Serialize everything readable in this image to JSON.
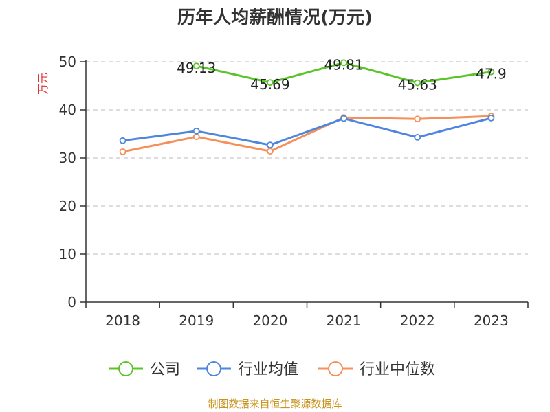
{
  "chart_data": {
    "type": "line",
    "title": "历年人均薪酬情况(万元)",
    "ylabel": "万元",
    "xlabel": "",
    "categories": [
      "2018",
      "2019",
      "2020",
      "2021",
      "2022",
      "2023"
    ],
    "ylim": [
      0,
      50
    ],
    "yticks": [
      "0",
      "10",
      "20",
      "30",
      "40",
      "50"
    ],
    "grid": true,
    "legend_position": "bottom",
    "series": [
      {
        "name": "公司",
        "color": "#5cc42b",
        "values": [
          null,
          49.13,
          45.69,
          49.81,
          45.63,
          47.9
        ],
        "labels": [
          null,
          "49.13",
          "45.69",
          "49.81",
          "45.63",
          "47.9"
        ]
      },
      {
        "name": "行业均值",
        "color": "#4f86dd",
        "values": [
          33.6,
          35.6,
          32.7,
          38.2,
          34.3,
          38.3
        ]
      },
      {
        "name": "行业中位数",
        "color": "#f5905a",
        "values": [
          31.3,
          34.4,
          31.4,
          38.4,
          38.1,
          38.7
        ]
      }
    ]
  },
  "source": {
    "text": "制图数据来自恒生聚源数据库",
    "color": "#c8941f"
  },
  "ylabel_color": "#e03030"
}
